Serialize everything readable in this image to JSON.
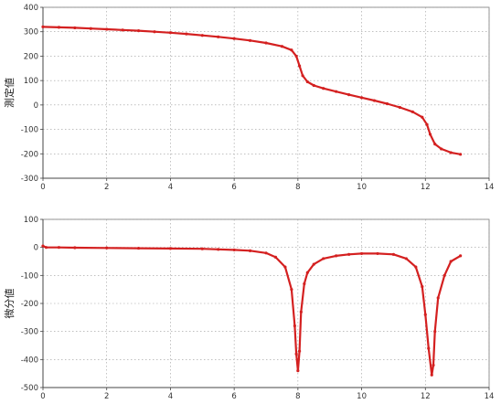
{
  "chart_data": [
    {
      "type": "line",
      "title": "",
      "xlabel": "",
      "ylabel": "測定値",
      "xlim": [
        0,
        14
      ],
      "ylim": [
        -300,
        400
      ],
      "xticks": [
        0,
        2,
        4,
        6,
        8,
        10,
        12,
        14
      ],
      "yticks": [
        -300,
        -200,
        -100,
        0,
        100,
        200,
        300,
        400
      ],
      "grid": true,
      "line_color": "#d42020",
      "series": [
        {
          "x": [
            0,
            0.5,
            1,
            1.5,
            2,
            2.5,
            3,
            3.5,
            4,
            4.5,
            5,
            5.5,
            6,
            6.5,
            7,
            7.5,
            7.8,
            7.95,
            8.05,
            8.15,
            8.3,
            8.5,
            8.8,
            9.2,
            9.6,
            10,
            10.4,
            10.8,
            11.2,
            11.6,
            11.9,
            12.05,
            12.15,
            12.3,
            12.5,
            12.8,
            13.1
          ],
          "y": [
            320,
            318,
            316,
            313,
            310,
            307,
            304,
            300,
            296,
            291,
            285,
            279,
            272,
            264,
            254,
            240,
            225,
            200,
            160,
            120,
            95,
            80,
            68,
            55,
            42,
            30,
            18,
            5,
            -10,
            -28,
            -50,
            -80,
            -120,
            -160,
            -180,
            -195,
            -202
          ]
        }
      ]
    },
    {
      "type": "line",
      "title": "",
      "xlabel": "",
      "ylabel": "微分値",
      "xlim": [
        0,
        14
      ],
      "ylim": [
        -500,
        100
      ],
      "xticks": [
        0,
        2,
        4,
        6,
        8,
        10,
        12,
        14
      ],
      "yticks": [
        -500,
        -400,
        -300,
        -200,
        -100,
        0,
        100
      ],
      "grid": true,
      "line_color": "#d42020",
      "peak_color": "#3a5bd9",
      "series": [
        {
          "x": [
            0,
            0.1,
            0.5,
            1,
            2,
            3,
            4,
            5,
            5.5,
            6,
            6.5,
            7,
            7.3,
            7.6,
            7.8,
            7.9,
            7.95,
            8,
            8.05,
            8.1,
            8.2,
            8.3,
            8.5,
            8.8,
            9.2,
            9.6,
            10,
            10.5,
            11,
            11.4,
            11.7,
            11.9,
            12,
            12.1,
            12.2,
            12.25,
            12.3,
            12.4,
            12.6,
            12.8,
            13.1
          ],
          "y": [
            5,
            0,
            0,
            -1,
            -2,
            -3,
            -4,
            -5,
            -7,
            -9,
            -12,
            -20,
            -35,
            -70,
            -150,
            -280,
            -380,
            -440,
            -370,
            -230,
            -130,
            -90,
            -60,
            -40,
            -30,
            -25,
            -22,
            -22,
            -25,
            -40,
            -70,
            -140,
            -240,
            -360,
            -455,
            -420,
            -300,
            -180,
            -100,
            -50,
            -30
          ]
        }
      ]
    }
  ]
}
